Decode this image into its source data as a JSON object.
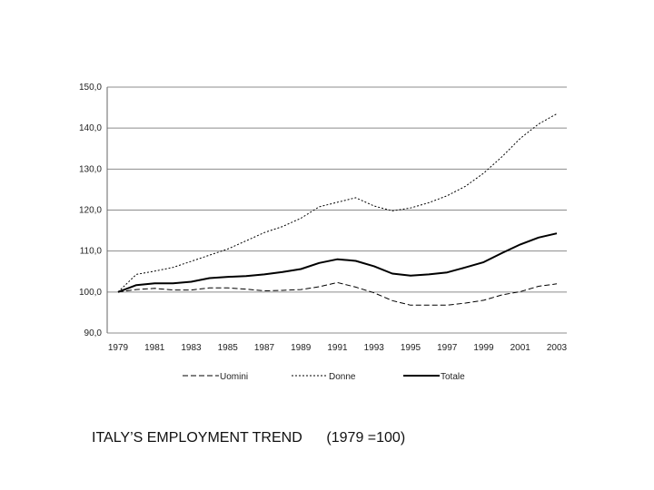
{
  "chart_data": {
    "type": "line",
    "title": "",
    "xlabel": "",
    "ylabel": "",
    "ylim": [
      90,
      150
    ],
    "ytick_labels": [
      "90,0",
      "100,0",
      "110,0",
      "120,0",
      "130,0",
      "140,0",
      "150,0"
    ],
    "ytick_values": [
      90,
      100,
      110,
      120,
      130,
      140,
      150
    ],
    "x": [
      1979,
      1980,
      1981,
      1982,
      1983,
      1984,
      1985,
      1986,
      1987,
      1988,
      1989,
      1990,
      1991,
      1992,
      1993,
      1994,
      1995,
      1996,
      1997,
      1998,
      1999,
      2000,
      2001,
      2002,
      2003
    ],
    "xtick_labels": [
      "1979",
      "1981",
      "1983",
      "1985",
      "1987",
      "1989",
      "1991",
      "1993",
      "1995",
      "1997",
      "1999",
      "2001",
      "2003"
    ],
    "grid": true,
    "legend_position": "bottom",
    "series": [
      {
        "name": "Uomini",
        "style": "dashed",
        "values": [
          100.0,
          100.6,
          100.9,
          100.5,
          100.5,
          101.0,
          101.0,
          100.7,
          100.3,
          100.4,
          100.6,
          101.3,
          102.3,
          101.2,
          99.8,
          97.9,
          96.8,
          96.8,
          96.8,
          97.3,
          98.0,
          99.3,
          100.1,
          101.4,
          102.0
        ]
      },
      {
        "name": "Donne",
        "style": "dotted",
        "values": [
          100.0,
          104.3,
          105.1,
          106.0,
          107.5,
          109.0,
          110.5,
          112.5,
          114.5,
          116.0,
          118.0,
          120.8,
          121.9,
          123.0,
          121.0,
          119.8,
          120.5,
          121.8,
          123.5,
          125.8,
          129.0,
          133.0,
          137.5,
          141.0,
          143.5
        ]
      },
      {
        "name": "Totale",
        "style": "solid",
        "values": [
          100.0,
          101.7,
          102.1,
          102.1,
          102.5,
          103.4,
          103.7,
          103.9,
          104.3,
          104.9,
          105.6,
          107.1,
          108.0,
          107.6,
          106.3,
          104.5,
          104.0,
          104.3,
          104.8,
          106.0,
          107.3,
          109.5,
          111.6,
          113.3,
          114.3
        ]
      }
    ],
    "colors": {
      "line": "#000000",
      "grid": "#8c8c8c",
      "axis": "#666666"
    }
  },
  "caption": {
    "main": "ITALY’S EMPLOYMENT TREND",
    "base": "(1979 =100)"
  }
}
